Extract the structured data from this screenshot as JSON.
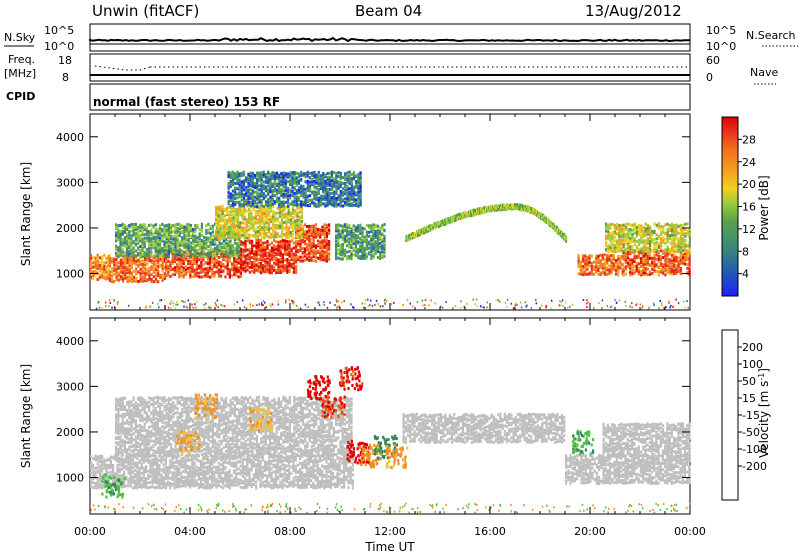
{
  "header": {
    "station": "Unwin (fitACF)",
    "beam": "Beam 04",
    "date": "13/Aug/2012"
  },
  "noise_panel": {
    "left_label": "N.Sky",
    "right_label": "N.Search",
    "ticks": [
      "10^5",
      "10^0"
    ]
  },
  "freq_panel": {
    "left_label_line1": "Freq.",
    "left_label_line2": "[MHz]",
    "left_ticks": [
      "18",
      "8"
    ],
    "right_label": "Nave",
    "right_ticks": [
      "60",
      "0"
    ]
  },
  "cpid": {
    "label": "CPID",
    "text": "normal (fast stereo) 153 RF"
  },
  "colors": {
    "power_scale": [
      "#2020ff",
      "#1f5fae",
      "#3f8a78",
      "#5aa24a",
      "#9ccc3a",
      "#f0d020",
      "#f5a020",
      "#f07020",
      "#e83020",
      "#e00000"
    ],
    "velocity_scale": [
      "#e00000",
      "#f05010",
      "#f09020",
      "#f0c040",
      "#c0c0c0",
      "#c0c0c0",
      "#50c040",
      "#308060",
      "#3050a0",
      "#2020c0"
    ],
    "ground_scatter": "#bebebe"
  },
  "chart_data": [
    {
      "type": "heatmap",
      "name": "power",
      "xlabel": "",
      "ylabel": "Slant Range [km]",
      "xlim": [
        0,
        24
      ],
      "ylim": [
        200,
        4500
      ],
      "y_ticks": [
        "1000",
        "2000",
        "3000",
        "4000"
      ],
      "colorbar": {
        "label": "Power [dB]",
        "range": [
          0,
          32
        ],
        "ticks": [
          "4",
          "8",
          "12",
          "16",
          "20",
          "24",
          "28"
        ]
      },
      "bands": [
        {
          "t0": 0.0,
          "t1": 0.75,
          "r0": 900,
          "r1": 1400,
          "level": 22
        },
        {
          "t0": 0.75,
          "t1": 3.0,
          "r0": 850,
          "r1": 1400,
          "level": 24
        },
        {
          "t0": 3.0,
          "t1": 6.0,
          "r0": 950,
          "r1": 1500,
          "level": 26
        },
        {
          "t0": 6.0,
          "t1": 8.2,
          "r0": 1050,
          "r1": 1750,
          "level": 27
        },
        {
          "t0": 8.2,
          "t1": 9.6,
          "r0": 1300,
          "r1": 2100,
          "level": 26
        },
        {
          "t0": 1.0,
          "t1": 6.0,
          "r0": 1400,
          "r1": 2100,
          "level": 11
        },
        {
          "t0": 5.0,
          "t1": 8.5,
          "r0": 1800,
          "r1": 2500,
          "level": 17
        },
        {
          "t0": 5.5,
          "t1": 10.8,
          "r0": 2500,
          "r1": 3250,
          "level": 7
        },
        {
          "t0": 9.8,
          "t1": 11.8,
          "r0": 1350,
          "r1": 2100,
          "level": 10
        },
        {
          "t0": 19.5,
          "t1": 21.3,
          "r0": 1000,
          "r1": 1450,
          "level": 24
        },
        {
          "t0": 21.3,
          "t1": 24.0,
          "r0": 1000,
          "r1": 1500,
          "level": 25
        },
        {
          "t0": 20.6,
          "t1": 24.0,
          "r0": 1500,
          "r1": 2100,
          "level": 16
        }
      ],
      "arc": {
        "t0": 12.6,
        "t1": 19.0,
        "peak_t": 17.0,
        "peak_r": 2500,
        "base_r": 1800,
        "level": 14
      }
    },
    {
      "type": "heatmap",
      "name": "velocity",
      "xlabel": "Time UT",
      "ylabel": "Slant Range [km]",
      "xlim": [
        0,
        24
      ],
      "ylim": [
        200,
        4500
      ],
      "x_ticks": [
        "00:00",
        "04:00",
        "08:00",
        "12:00",
        "16:00",
        "20:00",
        "00:00"
      ],
      "y_ticks": [
        "1000",
        "2000",
        "3000",
        "4000"
      ],
      "colorbar": {
        "label": "Velocity [m s^-1]",
        "range": [
          -250,
          250
        ],
        "ticks": [
          "200",
          "100",
          "50",
          "15",
          "-15",
          "-50",
          "-100",
          "-200"
        ]
      },
      "ground_scatter_bands": [
        {
          "t0": 0.0,
          "t1": 10.5,
          "r0": 800,
          "r1": 1500
        },
        {
          "t0": 1.0,
          "t1": 10.5,
          "r0": 1500,
          "r1": 2800
        },
        {
          "t0": 12.5,
          "t1": 19.0,
          "r0": 1800,
          "r1": 2400
        },
        {
          "t0": 19.0,
          "t1": 24.0,
          "r0": 900,
          "r1": 1500
        },
        {
          "t0": 20.5,
          "t1": 24.0,
          "r0": 1500,
          "r1": 2200
        }
      ],
      "velocity_blobs": [
        {
          "t": 4.6,
          "r": 2600,
          "v": -60
        },
        {
          "t": 6.8,
          "r": 2300,
          "v": -40
        },
        {
          "t": 9.1,
          "r": 3000,
          "v": -220
        },
        {
          "t": 9.7,
          "r": 2600,
          "v": -200
        },
        {
          "t": 10.4,
          "r": 3200,
          "v": -210
        },
        {
          "t": 10.7,
          "r": 1600,
          "v": -230
        },
        {
          "t": 11.2,
          "r": 1500,
          "v": -80
        },
        {
          "t": 11.8,
          "r": 1700,
          "v": 60
        },
        {
          "t": 12.2,
          "r": 1500,
          "v": -60
        },
        {
          "t": 3.9,
          "r": 1800,
          "v": -50
        },
        {
          "t": 0.9,
          "r": 850,
          "v": 40
        },
        {
          "t": 19.7,
          "r": 1800,
          "v": 40
        }
      ]
    }
  ]
}
